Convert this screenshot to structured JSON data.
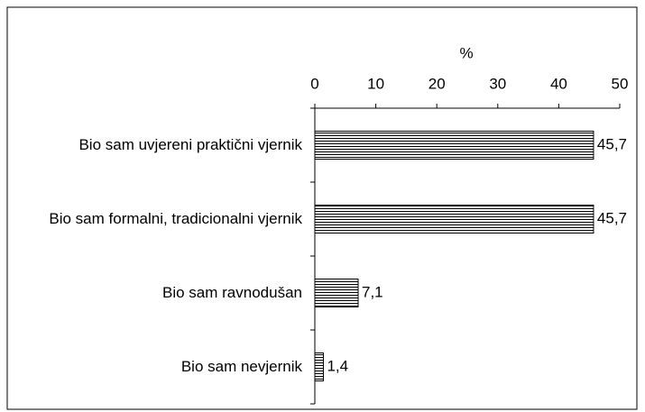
{
  "chart_data": {
    "type": "bar",
    "orientation": "horizontal",
    "x_label": "%",
    "categories": [
      "Bio sam uvjereni praktični vjernik",
      "Bio sam formalni, tradicionalni vjernik",
      "Bio sam ravnodušan",
      "Bio sam nevjernik"
    ],
    "values": [
      45.7,
      45.7,
      7.1,
      1.4
    ],
    "value_labels": [
      "45,7",
      "45,7",
      "7,1",
      "1,4"
    ],
    "color": "#000000",
    "xlim": [
      0,
      50
    ],
    "xticks": [
      0,
      10,
      20,
      30,
      40,
      50
    ]
  }
}
